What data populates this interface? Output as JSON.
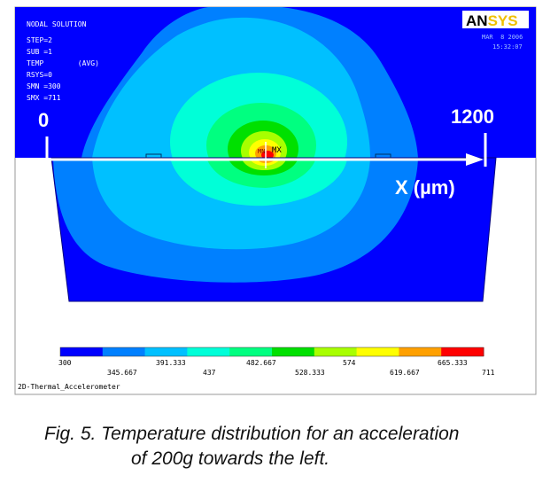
{
  "ansys": {
    "logo_text": "ANSYS",
    "logo_part1": "AN",
    "logo_part2": "SYS",
    "info_lines": [
      "NODAL SOLUTION",
      "STEP=2",
      "SUB =1",
      "TEMP        (AVG)",
      "RSYS=0",
      "SMN =300",
      "SMX =711"
    ],
    "date_lines": [
      "MAR  8 2006",
      "15:32:07"
    ],
    "point_labels": [
      "MN",
      "MX"
    ],
    "model_title": "2D-Thermal_Accelerometer",
    "colorbar": {
      "colors": [
        "#0000ff",
        "#0080ff",
        "#00c0ff",
        "#00ffd8",
        "#00ff80",
        "#00e000",
        "#a8ff00",
        "#ffff00",
        "#ffa000",
        "#ff0000"
      ],
      "labels_top": [
        "300",
        "391.333",
        "482.667",
        "574",
        "665.333"
      ],
      "labels_bottom": [
        "345.667",
        "437",
        "528.333",
        "619.667",
        "711"
      ]
    }
  },
  "overlay": {
    "start_label": "0",
    "end_label": "1200",
    "axis_label": "X (µm)"
  },
  "caption": {
    "line1": "Fig. 5. Temperature distribution for an acceleration",
    "line2": "of 200g towards the left."
  },
  "colors": {
    "background_blue": "#0000ff",
    "annotation_white": "#ffffff",
    "logo_yellow": "#f0c000"
  }
}
